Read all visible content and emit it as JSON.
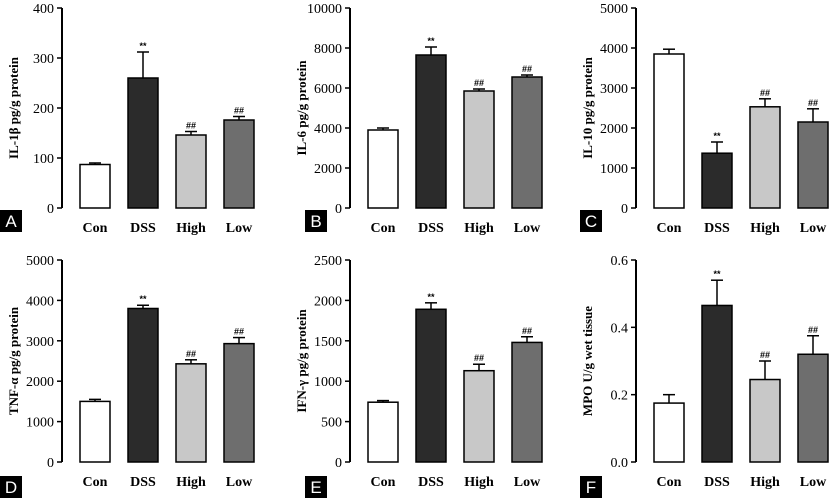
{
  "chart_data": [
    {
      "type": "bar",
      "panel": "A",
      "ylabel": "IL-1β pg/g protein",
      "categories": [
        "Con",
        "DSS",
        "High",
        "Low"
      ],
      "values": [
        87,
        260,
        146,
        176
      ],
      "errors": [
        3,
        52,
        7,
        7
      ],
      "annotations": [
        "",
        "**",
        "##",
        "##"
      ],
      "ylim": [
        0,
        400
      ],
      "yticks": [
        0,
        100,
        200,
        300,
        400
      ],
      "fills": [
        "#ffffff",
        "#2b2b2b",
        "#c8c8c8",
        "#6e6e6e"
      ]
    },
    {
      "type": "bar",
      "panel": "B",
      "ylabel": "IL-6 pg/g protein",
      "categories": [
        "Con",
        "DSS",
        "High",
        "Low"
      ],
      "values": [
        3900,
        7650,
        5850,
        6550
      ],
      "errors": [
        100,
        400,
        100,
        100
      ],
      "annotations": [
        "",
        "**",
        "##",
        "##"
      ],
      "ylim": [
        0,
        10000
      ],
      "yticks": [
        0,
        2000,
        4000,
        6000,
        8000,
        10000
      ],
      "fills": [
        "#ffffff",
        "#2b2b2b",
        "#c8c8c8",
        "#6e6e6e"
      ]
    },
    {
      "type": "bar",
      "panel": "C",
      "ylabel": "IL-10 pg/g protein",
      "categories": [
        "Con",
        "DSS",
        "High",
        "Low"
      ],
      "values": [
        3850,
        1370,
        2530,
        2150
      ],
      "errors": [
        120,
        280,
        200,
        330
      ],
      "annotations": [
        "",
        "**",
        "##",
        "##"
      ],
      "ylim": [
        0,
        5000
      ],
      "yticks": [
        0,
        1000,
        2000,
        3000,
        4000,
        5000
      ],
      "fills": [
        "#ffffff",
        "#2b2b2b",
        "#c8c8c8",
        "#6e6e6e"
      ]
    },
    {
      "type": "bar",
      "panel": "D",
      "ylabel": "TNF-α pg/g protein",
      "categories": [
        "Con",
        "DSS",
        "High",
        "Low"
      ],
      "values": [
        1500,
        3800,
        2430,
        2930
      ],
      "errors": [
        50,
        80,
        100,
        150
      ],
      "annotations": [
        "",
        "**",
        "##",
        "##"
      ],
      "ylim": [
        0,
        5000
      ],
      "yticks": [
        0,
        1000,
        2000,
        3000,
        4000,
        5000
      ],
      "fills": [
        "#ffffff",
        "#2b2b2b",
        "#c8c8c8",
        "#6e6e6e"
      ]
    },
    {
      "type": "bar",
      "panel": "E",
      "ylabel": "IFN-γ pg/g protein",
      "categories": [
        "Con",
        "DSS",
        "High",
        "Low"
      ],
      "values": [
        740,
        1890,
        1130,
        1480
      ],
      "errors": [
        20,
        80,
        80,
        70
      ],
      "annotations": [
        "",
        "**",
        "##",
        "##"
      ],
      "ylim": [
        0,
        2500
      ],
      "yticks": [
        0,
        500,
        1000,
        1500,
        2000,
        2500
      ],
      "fills": [
        "#ffffff",
        "#2b2b2b",
        "#c8c8c8",
        "#6e6e6e"
      ]
    },
    {
      "type": "bar",
      "panel": "F",
      "ylabel": "MPO U/g wet tissue",
      "categories": [
        "Con",
        "DSS",
        "High",
        "Low"
      ],
      "values": [
        0.175,
        0.465,
        0.245,
        0.32
      ],
      "errors": [
        0.025,
        0.075,
        0.055,
        0.055
      ],
      "annotations": [
        "",
        "**",
        "##",
        "##"
      ],
      "ylim": [
        0,
        0.6
      ],
      "yticks": [
        0.0,
        0.2,
        0.4,
        0.6
      ],
      "ytick_labels": [
        "0.0",
        "0.2",
        "0.4",
        "0.6"
      ],
      "fills": [
        "#ffffff",
        "#2b2b2b",
        "#c8c8c8",
        "#6e6e6e"
      ]
    }
  ]
}
